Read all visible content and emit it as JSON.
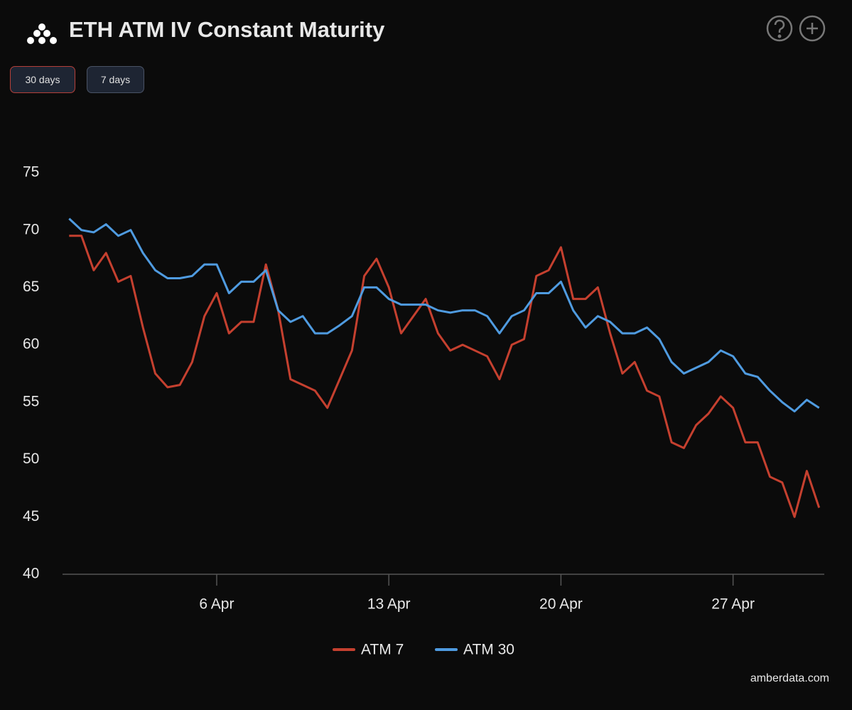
{
  "chart_data": {
    "type": "line",
    "title": "ETH ATM IV Constant Maturity",
    "x": [
      0,
      0.5,
      1,
      1.5,
      2,
      2.5,
      3,
      3.5,
      4,
      4.5,
      5,
      5.5,
      6,
      6.5,
      7,
      7.5,
      8,
      8.5,
      9,
      9.5,
      10,
      10.5,
      11,
      11.5,
      12,
      12.5,
      13,
      13.5,
      14,
      14.5,
      15,
      15.5,
      16,
      16.5,
      17,
      17.5,
      18,
      18.5,
      19,
      19.5,
      20,
      20.5,
      21,
      21.5,
      22,
      22.5,
      23,
      23.5,
      24,
      24.5,
      25,
      25.5,
      26,
      26.5,
      27,
      27.5,
      28,
      28.5,
      29,
      29.5,
      30,
      30.5
    ],
    "series": [
      {
        "name": "ATM 7",
        "color": "#c5402f",
        "values": [
          69.5,
          69.5,
          66.5,
          68,
          65.5,
          66,
          61.5,
          57.5,
          56.3,
          56.5,
          58.5,
          62.5,
          64.5,
          61,
          62,
          62,
          67,
          63,
          57,
          56.5,
          56,
          54.5,
          57,
          59.5,
          66,
          67.5,
          65,
          61,
          62.5,
          64,
          61,
          59.5,
          60,
          59.5,
          59,
          57,
          60,
          60.5,
          66,
          66.5,
          68.5,
          64,
          64,
          65,
          61,
          57.5,
          58.5,
          56,
          55.5,
          51.5,
          51,
          53,
          54,
          55.5,
          54.5,
          51.5,
          51.5,
          48.5,
          48,
          45,
          49,
          45.8
        ]
      },
      {
        "name": "ATM 30",
        "color": "#4f9be0",
        "values": [
          71,
          70,
          69.8,
          70.5,
          69.5,
          70,
          68,
          66.5,
          65.8,
          65.8,
          66,
          67,
          67,
          64.5,
          65.5,
          65.5,
          66.5,
          63,
          62,
          62.5,
          61,
          61,
          61.7,
          62.5,
          65,
          65,
          64,
          63.5,
          63.5,
          63.5,
          63,
          62.8,
          63,
          63,
          62.5,
          61,
          62.5,
          63,
          64.5,
          64.5,
          65.5,
          63,
          61.5,
          62.5,
          62,
          61,
          61,
          61.5,
          60.5,
          58.5,
          57.5,
          58,
          58.5,
          59.5,
          59,
          57.5,
          57.2,
          56,
          55,
          54.2,
          55.2,
          54.5
        ]
      }
    ],
    "xlim": [
      -0.27,
      30.71
    ],
    "xticks": [
      {
        "value": 6,
        "label": "6 Apr"
      },
      {
        "value": 13,
        "label": "13 Apr"
      },
      {
        "value": 20,
        "label": "20 Apr"
      },
      {
        "value": 27,
        "label": "27 Apr"
      }
    ],
    "ylim": [
      40,
      75
    ],
    "yticks": [
      40,
      45,
      50,
      55,
      60,
      65,
      70,
      75
    ],
    "legend": "bottom"
  },
  "buttons": [
    "30 days",
    "7 days"
  ],
  "source": "amberdata.com"
}
